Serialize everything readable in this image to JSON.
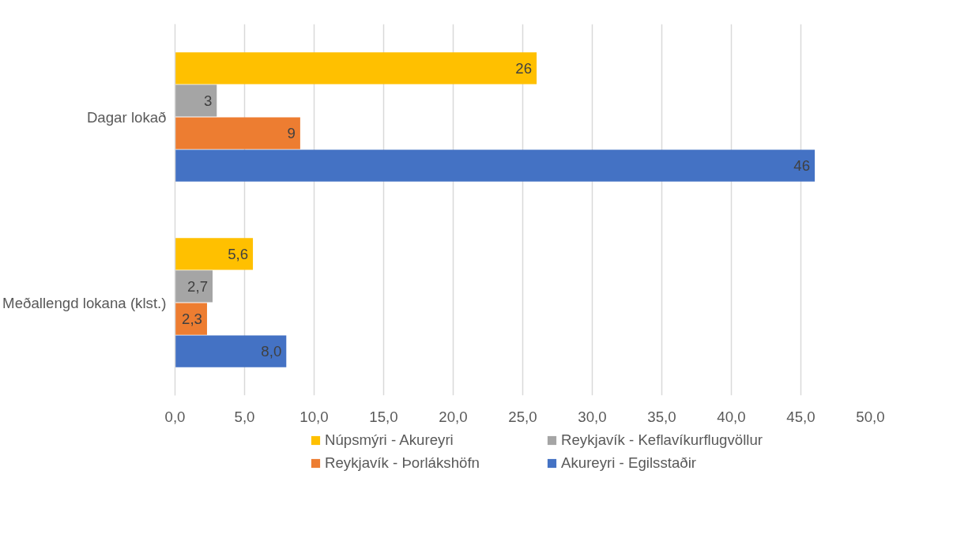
{
  "chart_data": {
    "type": "bar",
    "orientation": "horizontal",
    "categories": [
      "Dagar lokað",
      "Meðallengd lokana (klst.)"
    ],
    "series": [
      {
        "name": "Núpsmýri - Akureyri",
        "color": "#ffc000",
        "values": [
          26,
          5.6
        ],
        "value_labels": [
          "26",
          "5,6"
        ]
      },
      {
        "name": "Reykjavík - Keflavíkurflugvöllur",
        "color": "#a5a5a5",
        "values": [
          3,
          2.7
        ],
        "value_labels": [
          "3",
          "2,7"
        ]
      },
      {
        "name": "Reykjavík - Þorlákshöfn",
        "color": "#ed7d31",
        "values": [
          9,
          2.3
        ],
        "value_labels": [
          "9",
          "2,3"
        ]
      },
      {
        "name": "Akureyri - Egilsstaðir",
        "color": "#4472c4",
        "values": [
          46,
          8.0
        ],
        "value_labels": [
          "46",
          "8,0"
        ]
      }
    ],
    "xlim": [
      0,
      50
    ],
    "xticks": [
      {
        "value": 0,
        "label": "0,0"
      },
      {
        "value": 5,
        "label": "5,0"
      },
      {
        "value": 10,
        "label": "10,0"
      },
      {
        "value": 15,
        "label": "15,0"
      },
      {
        "value": 20,
        "label": "20,0"
      },
      {
        "value": 25,
        "label": "25,0"
      },
      {
        "value": 30,
        "label": "30,0"
      },
      {
        "value": 35,
        "label": "35,0"
      },
      {
        "value": 40,
        "label": "40,0"
      },
      {
        "value": 45,
        "label": "45,0"
      },
      {
        "value": 50,
        "label": "50,0"
      }
    ],
    "grid": "x",
    "legend": "bottom"
  }
}
